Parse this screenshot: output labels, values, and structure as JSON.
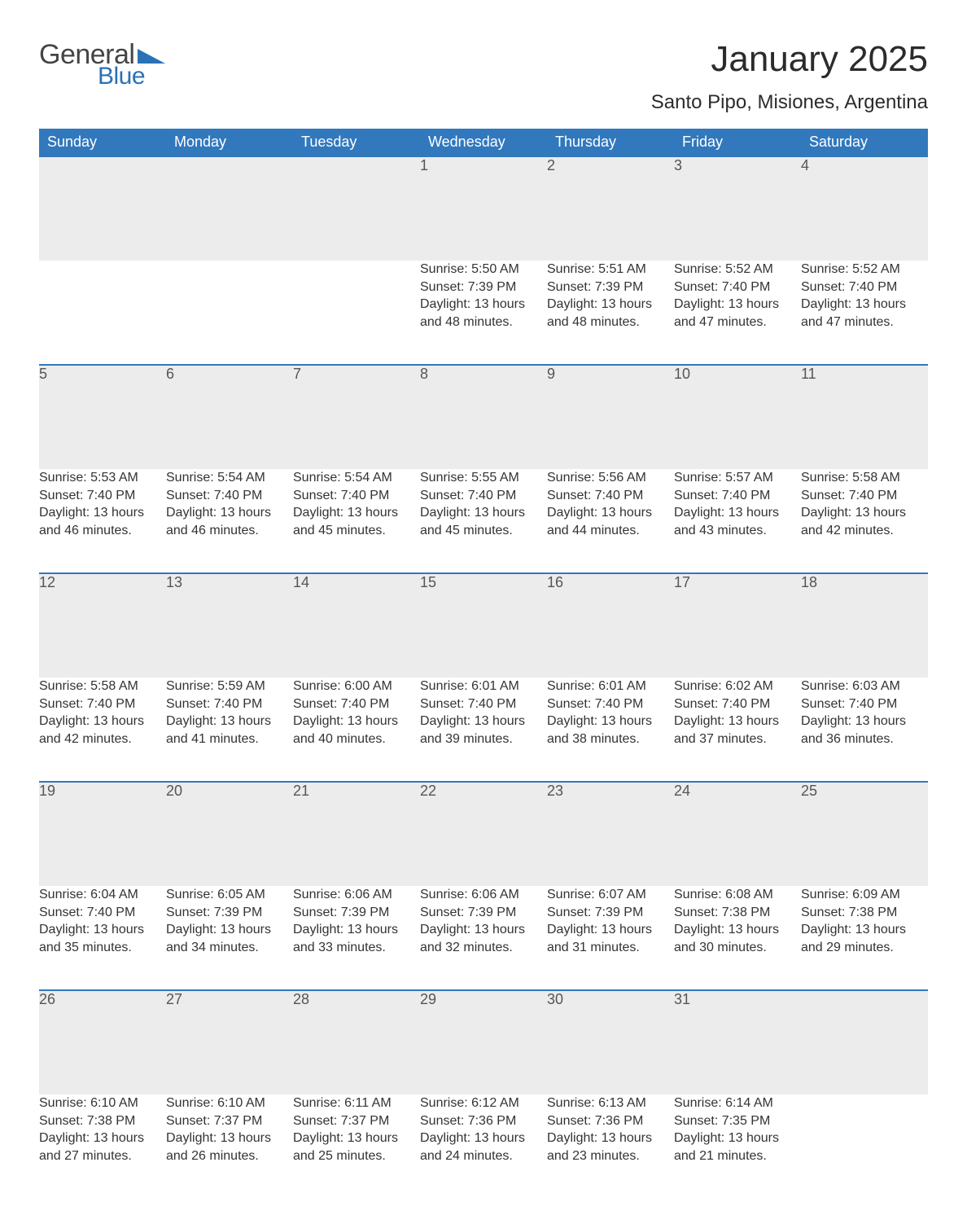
{
  "logo": {
    "text_top": "General",
    "text_bottom": "Blue",
    "tri_color": "#2a72b5"
  },
  "title": "January 2025",
  "location": "Santo Pipo, Misiones, Argentina",
  "colors": {
    "header_bg": "#3178bd",
    "header_text": "#ffffff",
    "daynum_bg": "#ececec",
    "daynum_border": "#3178bd",
    "body_text": "#333333",
    "logo_gray": "#444444",
    "logo_blue": "#2a72b5",
    "page_bg": "#ffffff"
  },
  "typography": {
    "title_fontsize_pt": 33,
    "location_fontsize_pt": 18,
    "weekday_fontsize_pt": 14,
    "daynum_fontsize_pt": 14,
    "cell_fontsize_pt": 12,
    "font_family": "Arial"
  },
  "layout": {
    "columns": 7,
    "rows": 5,
    "leading_blanks": 3,
    "trailing_blanks": 1
  },
  "weekdays": [
    "Sunday",
    "Monday",
    "Tuesday",
    "Wednesday",
    "Thursday",
    "Friday",
    "Saturday"
  ],
  "days": [
    {
      "n": 1,
      "sunrise": "5:50 AM",
      "sunset": "7:39 PM",
      "daylight": "13 hours and 48 minutes."
    },
    {
      "n": 2,
      "sunrise": "5:51 AM",
      "sunset": "7:39 PM",
      "daylight": "13 hours and 48 minutes."
    },
    {
      "n": 3,
      "sunrise": "5:52 AM",
      "sunset": "7:40 PM",
      "daylight": "13 hours and 47 minutes."
    },
    {
      "n": 4,
      "sunrise": "5:52 AM",
      "sunset": "7:40 PM",
      "daylight": "13 hours and 47 minutes."
    },
    {
      "n": 5,
      "sunrise": "5:53 AM",
      "sunset": "7:40 PM",
      "daylight": "13 hours and 46 minutes."
    },
    {
      "n": 6,
      "sunrise": "5:54 AM",
      "sunset": "7:40 PM",
      "daylight": "13 hours and 46 minutes."
    },
    {
      "n": 7,
      "sunrise": "5:54 AM",
      "sunset": "7:40 PM",
      "daylight": "13 hours and 45 minutes."
    },
    {
      "n": 8,
      "sunrise": "5:55 AM",
      "sunset": "7:40 PM",
      "daylight": "13 hours and 45 minutes."
    },
    {
      "n": 9,
      "sunrise": "5:56 AM",
      "sunset": "7:40 PM",
      "daylight": "13 hours and 44 minutes."
    },
    {
      "n": 10,
      "sunrise": "5:57 AM",
      "sunset": "7:40 PM",
      "daylight": "13 hours and 43 minutes."
    },
    {
      "n": 11,
      "sunrise": "5:58 AM",
      "sunset": "7:40 PM",
      "daylight": "13 hours and 42 minutes."
    },
    {
      "n": 12,
      "sunrise": "5:58 AM",
      "sunset": "7:40 PM",
      "daylight": "13 hours and 42 minutes."
    },
    {
      "n": 13,
      "sunrise": "5:59 AM",
      "sunset": "7:40 PM",
      "daylight": "13 hours and 41 minutes."
    },
    {
      "n": 14,
      "sunrise": "6:00 AM",
      "sunset": "7:40 PM",
      "daylight": "13 hours and 40 minutes."
    },
    {
      "n": 15,
      "sunrise": "6:01 AM",
      "sunset": "7:40 PM",
      "daylight": "13 hours and 39 minutes."
    },
    {
      "n": 16,
      "sunrise": "6:01 AM",
      "sunset": "7:40 PM",
      "daylight": "13 hours and 38 minutes."
    },
    {
      "n": 17,
      "sunrise": "6:02 AM",
      "sunset": "7:40 PM",
      "daylight": "13 hours and 37 minutes."
    },
    {
      "n": 18,
      "sunrise": "6:03 AM",
      "sunset": "7:40 PM",
      "daylight": "13 hours and 36 minutes."
    },
    {
      "n": 19,
      "sunrise": "6:04 AM",
      "sunset": "7:40 PM",
      "daylight": "13 hours and 35 minutes."
    },
    {
      "n": 20,
      "sunrise": "6:05 AM",
      "sunset": "7:39 PM",
      "daylight": "13 hours and 34 minutes."
    },
    {
      "n": 21,
      "sunrise": "6:06 AM",
      "sunset": "7:39 PM",
      "daylight": "13 hours and 33 minutes."
    },
    {
      "n": 22,
      "sunrise": "6:06 AM",
      "sunset": "7:39 PM",
      "daylight": "13 hours and 32 minutes."
    },
    {
      "n": 23,
      "sunrise": "6:07 AM",
      "sunset": "7:39 PM",
      "daylight": "13 hours and 31 minutes."
    },
    {
      "n": 24,
      "sunrise": "6:08 AM",
      "sunset": "7:38 PM",
      "daylight": "13 hours and 30 minutes."
    },
    {
      "n": 25,
      "sunrise": "6:09 AM",
      "sunset": "7:38 PM",
      "daylight": "13 hours and 29 minutes."
    },
    {
      "n": 26,
      "sunrise": "6:10 AM",
      "sunset": "7:38 PM",
      "daylight": "13 hours and 27 minutes."
    },
    {
      "n": 27,
      "sunrise": "6:10 AM",
      "sunset": "7:37 PM",
      "daylight": "13 hours and 26 minutes."
    },
    {
      "n": 28,
      "sunrise": "6:11 AM",
      "sunset": "7:37 PM",
      "daylight": "13 hours and 25 minutes."
    },
    {
      "n": 29,
      "sunrise": "6:12 AM",
      "sunset": "7:36 PM",
      "daylight": "13 hours and 24 minutes."
    },
    {
      "n": 30,
      "sunrise": "6:13 AM",
      "sunset": "7:36 PM",
      "daylight": "13 hours and 23 minutes."
    },
    {
      "n": 31,
      "sunrise": "6:14 AM",
      "sunset": "7:35 PM",
      "daylight": "13 hours and 21 minutes."
    }
  ],
  "labels": {
    "sunrise": "Sunrise: ",
    "sunset": "Sunset: ",
    "daylight": "Daylight: "
  }
}
